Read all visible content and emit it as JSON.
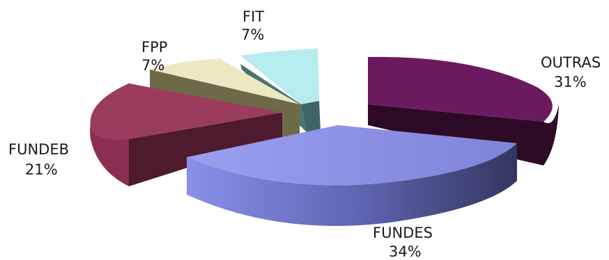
{
  "chart_data": {
    "type": "pie",
    "title": "",
    "slices": [
      {
        "label": "OUTRAS",
        "value_label": "31%",
        "value": 31,
        "color": "#6a1a5f"
      },
      {
        "label": "FUNDES",
        "value_label": "34%",
        "value": 34,
        "color": "#8a8fe6"
      },
      {
        "label": "FUNDEB",
        "value_label": "21%",
        "value": 21,
        "color": "#9a3a5c"
      },
      {
        "label": "FPP",
        "value_label": "7%",
        "value": 7,
        "color": "#ece8c0"
      },
      {
        "label": "FIT",
        "value_label": "7%",
        "value": 7,
        "color": "#b6ecee"
      }
    ],
    "legend": "none",
    "style": "3d-exploded"
  }
}
